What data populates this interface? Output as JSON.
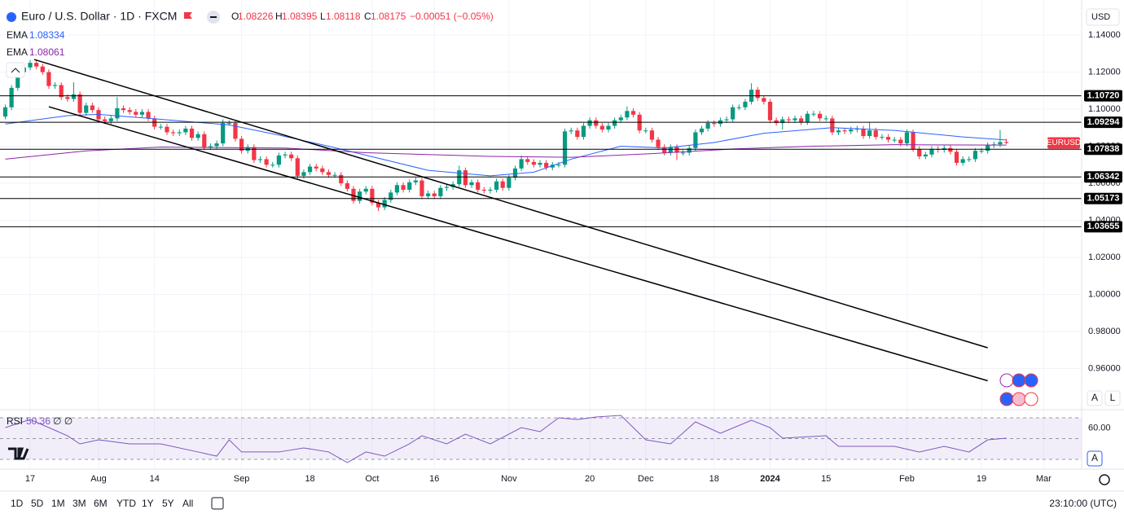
{
  "header": {
    "symbol": "Euro / U.S. Dollar · 1D · FXCM",
    "ohlc_labels": [
      "O",
      "H",
      "L",
      "C"
    ],
    "change": "−0.00051 (−0.05%)",
    "currency": "USD"
  },
  "toolbar": {
    "ranges": [
      "1D",
      "5D",
      "1M",
      "3M",
      "6M",
      "YTD",
      "1Y",
      "5Y",
      "All"
    ],
    "time": "23:10:00 (UTC)",
    "scale_buttons": [
      "A",
      "L"
    ]
  },
  "chart_data": [
    {
      "type": "candlestick",
      "symbol_tag": "EURUSD",
      "up_color": "#089981",
      "down_color": "#f23645",
      "grid": true,
      "categories": [
        null,
        null,
        null,
        null,
        "17",
        null,
        null,
        null,
        null,
        null,
        null,
        null,
        null,
        null,
        null,
        "Aug",
        null,
        null,
        null,
        null,
        null,
        null,
        null,
        null,
        "14",
        null,
        null,
        null,
        null,
        null,
        null,
        null,
        null,
        null,
        null,
        null,
        null,
        null,
        "Sep",
        null,
        null,
        null,
        null,
        null,
        null,
        null,
        null,
        null,
        null,
        "18",
        null,
        null,
        null,
        null,
        null,
        null,
        null,
        null,
        null,
        "Oct",
        null,
        null,
        null,
        null,
        null,
        null,
        null,
        null,
        null,
        "16",
        null,
        null,
        null,
        null,
        null,
        null,
        null,
        null,
        null,
        null,
        null,
        "Nov",
        null,
        null,
        null,
        null,
        null,
        null,
        null,
        null,
        null,
        null,
        null,
        null,
        "20",
        null,
        null,
        null,
        null,
        null,
        null,
        null,
        null,
        "Dec",
        null,
        null,
        null,
        null,
        null,
        null,
        null,
        null,
        null,
        null,
        "18",
        null,
        null,
        null,
        null,
        null,
        null,
        null,
        null,
        "2024",
        null,
        null,
        null,
        null,
        null,
        null,
        null,
        null,
        "15",
        null,
        null,
        null,
        null,
        null,
        null,
        null,
        null,
        null,
        null,
        null,
        null,
        "Feb",
        null,
        null,
        null,
        null,
        null,
        null,
        null,
        null,
        null,
        null,
        null,
        "19",
        null,
        null,
        null,
        null,
        null,
        null,
        null,
        null,
        null,
        "Mar"
      ],
      "open": [
        1.096,
        1.101,
        1.1115,
        1.12,
        1.1225,
        1.125,
        1.123,
        1.12,
        1.1125,
        1.113,
        1.1065,
        1.1055,
        1.108,
        1.098,
        1.102,
        1.0995,
        1.0945,
        1.0935,
        1.095,
        1.1005,
        1.0995,
        1.0985,
        1.097,
        1.0985,
        1.095,
        1.0905,
        1.0905,
        1.0875,
        1.087,
        1.0875,
        1.0895,
        1.0845,
        1.0865,
        1.0795,
        1.08,
        1.0815,
        1.0925,
        1.0925,
        1.084,
        1.0775,
        1.0795,
        1.0725,
        1.073,
        1.07,
        1.07,
        1.075,
        1.0755,
        1.0735,
        1.064,
        1.066,
        1.069,
        1.068,
        1.066,
        1.0645,
        1.0645,
        1.06,
        1.057,
        1.0505,
        1.0555,
        1.057,
        1.0495,
        1.047,
        1.051,
        1.055,
        1.059,
        1.0565,
        1.0605,
        1.0615,
        1.053,
        1.0545,
        1.053,
        1.0575,
        1.058,
        1.0595,
        1.067,
        1.059,
        1.0605,
        1.0565,
        1.056,
        1.0565,
        1.061,
        1.0575,
        1.063,
        1.068,
        1.073,
        1.0715,
        1.07,
        1.071,
        1.0685,
        1.07,
        1.07,
        1.088,
        1.0885,
        1.085,
        1.091,
        1.094,
        1.091,
        1.089,
        1.091,
        1.094,
        1.0955,
        1.099,
        1.097,
        1.0885,
        1.0885,
        1.0835,
        1.0795,
        1.0765,
        1.0795,
        1.0765,
        1.0765,
        1.079,
        1.0875,
        1.0895,
        1.0925,
        1.092,
        1.094,
        1.0945,
        1.101,
        1.101,
        1.104,
        1.1105,
        1.106,
        1.104,
        1.094,
        1.0925,
        1.0945,
        1.094,
        1.095,
        1.093,
        1.0975,
        1.0975,
        1.095,
        1.095,
        1.0875,
        1.0885,
        1.088,
        1.089,
        1.0895,
        1.0855,
        1.0885,
        1.085,
        1.085,
        1.0835,
        1.0835,
        1.0815,
        1.0875,
        1.0785,
        1.0745,
        1.0755,
        1.0785,
        1.078,
        1.079,
        1.077,
        1.071,
        1.073,
        1.073,
        1.0775,
        1.0775,
        1.0805,
        1.081,
        1.08226,
        null,
        null,
        null,
        null,
        null,
        null
      ],
      "high": [
        1.1025,
        1.113,
        1.1215,
        1.124,
        1.1265,
        1.1265,
        1.1245,
        1.1215,
        1.1145,
        1.1145,
        1.108,
        1.1145,
        1.1095,
        1.1035,
        1.1035,
        1.101,
        1.096,
        1.0965,
        1.1065,
        1.102,
        1.101,
        1.1,
        1.1,
        1.1,
        1.0965,
        1.092,
        1.092,
        1.089,
        1.089,
        1.091,
        1.091,
        1.088,
        1.088,
        1.0815,
        1.083,
        1.0945,
        1.094,
        1.094,
        1.0855,
        1.081,
        1.081,
        1.0745,
        1.0745,
        1.0715,
        1.0765,
        1.077,
        1.077,
        1.075,
        1.0675,
        1.0705,
        1.0705,
        1.0695,
        1.0675,
        1.066,
        1.066,
        1.0615,
        1.0585,
        1.057,
        1.0585,
        1.0585,
        1.051,
        1.0525,
        1.0565,
        1.0605,
        1.0605,
        1.062,
        1.063,
        1.063,
        1.056,
        1.056,
        1.059,
        1.0595,
        1.061,
        1.0695,
        1.0685,
        1.062,
        1.062,
        1.058,
        1.058,
        1.0625,
        1.0625,
        1.0645,
        1.0695,
        1.075,
        1.0745,
        1.073,
        1.0725,
        1.0725,
        1.0715,
        1.0715,
        1.0895,
        1.09,
        1.09,
        1.0925,
        1.0955,
        1.0955,
        1.0925,
        1.0925,
        1.0955,
        1.097,
        1.1015,
        1.1005,
        1.0985,
        1.09,
        1.09,
        1.085,
        1.081,
        1.081,
        1.081,
        1.078,
        1.0805,
        1.089,
        1.091,
        1.094,
        1.094,
        1.0955,
        1.096,
        1.1025,
        1.1025,
        1.1055,
        1.114,
        1.112,
        1.1075,
        1.1055,
        1.0955,
        1.096,
        1.096,
        1.0965,
        1.0965,
        1.099,
        1.099,
        1.099,
        1.0965,
        1.0965,
        1.09,
        1.09,
        1.0905,
        1.091,
        1.091,
        1.093,
        1.09,
        1.0865,
        1.0865,
        1.085,
        1.085,
        1.089,
        1.089,
        1.08,
        1.077,
        1.08,
        1.08,
        1.0805,
        1.0805,
        1.0785,
        1.0745,
        1.0745,
        1.079,
        1.079,
        1.082,
        1.0825,
        1.0888,
        1.08395,
        null,
        null,
        null,
        null,
        null,
        null
      ],
      "low": [
        1.0945,
        1.0995,
        1.11,
        1.1185,
        1.121,
        1.1215,
        1.1185,
        1.111,
        1.111,
        1.105,
        1.104,
        1.104,
        1.0965,
        1.0965,
        1.098,
        1.093,
        1.092,
        1.092,
        1.0935,
        1.098,
        1.097,
        1.0955,
        1.0955,
        1.0935,
        1.089,
        1.089,
        1.086,
        1.0855,
        1.0855,
        1.086,
        1.083,
        1.083,
        1.078,
        1.078,
        1.0785,
        1.08,
        1.091,
        1.0825,
        1.076,
        1.076,
        1.071,
        1.071,
        1.0685,
        1.0685,
        1.0685,
        1.0735,
        1.072,
        1.0625,
        1.0625,
        1.0645,
        1.0665,
        1.0645,
        1.063,
        1.063,
        1.0585,
        1.0555,
        1.049,
        1.049,
        1.054,
        1.048,
        1.045,
        1.0455,
        1.0495,
        1.0535,
        1.055,
        1.055,
        1.059,
        1.0515,
        1.0515,
        1.0515,
        1.0515,
        1.056,
        1.0565,
        1.058,
        1.0575,
        1.0575,
        1.055,
        1.0545,
        1.0545,
        1.055,
        1.056,
        1.056,
        1.0615,
        1.0665,
        1.07,
        1.0685,
        1.0685,
        1.067,
        1.067,
        1.0685,
        1.0685,
        1.0865,
        1.0835,
        1.0835,
        1.0895,
        1.0895,
        1.0875,
        1.0875,
        1.0895,
        1.0925,
        1.094,
        1.0955,
        1.087,
        1.087,
        1.082,
        1.078,
        1.075,
        1.075,
        1.0725,
        1.075,
        1.075,
        1.0775,
        1.086,
        1.088,
        1.0905,
        1.0905,
        1.0925,
        1.093,
        1.0995,
        1.0995,
        1.1025,
        1.1045,
        1.1025,
        1.0925,
        1.091,
        1.089,
        1.0925,
        1.0925,
        1.0915,
        1.0915,
        1.096,
        1.0935,
        1.0935,
        1.086,
        1.086,
        1.0865,
        1.0865,
        1.0875,
        1.084,
        1.084,
        1.0835,
        1.0835,
        1.082,
        1.082,
        1.08,
        1.08,
        1.077,
        1.073,
        1.073,
        1.074,
        1.0765,
        1.0765,
        1.0755,
        1.0695,
        1.0695,
        1.0715,
        1.0715,
        1.076,
        1.076,
        1.079,
        1.0795,
        1.08118,
        null,
        null,
        null,
        null,
        null,
        null
      ],
      "close": [
        1.101,
        1.1115,
        1.12,
        1.1225,
        1.125,
        1.123,
        1.12,
        1.1125,
        1.113,
        1.1065,
        1.1055,
        1.108,
        1.098,
        1.102,
        1.0995,
        1.0945,
        1.0935,
        1.095,
        1.1005,
        1.0995,
        1.0985,
        1.097,
        1.0985,
        1.095,
        1.0905,
        1.0905,
        1.0875,
        1.087,
        1.0875,
        1.0895,
        1.0845,
        1.0865,
        1.0795,
        1.08,
        1.0815,
        1.0925,
        1.0925,
        1.084,
        1.0775,
        1.0795,
        1.0725,
        1.073,
        1.07,
        1.07,
        1.075,
        1.0755,
        1.0735,
        1.064,
        1.066,
        1.069,
        1.068,
        1.066,
        1.0645,
        1.0645,
        1.06,
        1.057,
        1.0505,
        1.0555,
        1.057,
        1.0495,
        1.047,
        1.051,
        1.055,
        1.059,
        1.0565,
        1.0605,
        1.0615,
        1.053,
        1.0545,
        1.053,
        1.0575,
        1.058,
        1.0595,
        1.067,
        1.059,
        1.0605,
        1.0565,
        1.056,
        1.0565,
        1.061,
        1.0575,
        1.063,
        1.068,
        1.073,
        1.0715,
        1.07,
        1.071,
        1.0685,
        1.07,
        1.07,
        1.088,
        1.0885,
        1.085,
        1.091,
        1.094,
        1.091,
        1.089,
        1.091,
        1.094,
        1.0955,
        1.099,
        1.097,
        1.0885,
        1.0885,
        1.0835,
        1.0795,
        1.0765,
        1.0795,
        1.0765,
        1.0765,
        1.079,
        1.0875,
        1.0895,
        1.0925,
        1.092,
        1.094,
        1.0945,
        1.101,
        1.101,
        1.104,
        1.1105,
        1.106,
        1.104,
        1.094,
        1.0925,
        1.0945,
        1.094,
        1.095,
        1.093,
        1.0975,
        1.0975,
        1.095,
        1.095,
        1.0875,
        1.0885,
        1.088,
        1.089,
        1.0895,
        1.0855,
        1.0885,
        1.085,
        1.085,
        1.0835,
        1.0835,
        1.0815,
        1.0875,
        1.0785,
        1.0745,
        1.0755,
        1.0785,
        1.078,
        1.079,
        1.077,
        1.071,
        1.073,
        1.073,
        1.0775,
        1.0775,
        1.0805,
        1.081,
        1.08226,
        1.08175,
        null,
        null,
        null,
        null,
        null,
        null
      ],
      "series": [
        {
          "name": "EMA",
          "color": "#2962ff",
          "x": [
            0,
            10,
            15,
            25,
            36,
            44,
            52,
            60,
            68,
            78,
            85,
            91,
            99,
            106,
            114,
            122,
            133,
            143,
            154,
            161
          ],
          "values": [
            1.092,
            1.0965,
            1.0972,
            1.0945,
            1.0915,
            1.086,
            1.08,
            1.0735,
            1.067,
            1.064,
            1.066,
            1.073,
            1.08,
            1.079,
            1.082,
            1.087,
            1.09,
            1.0885,
            1.085,
            1.08334
          ]
        },
        {
          "name": "EMA",
          "color": "#8e24aa",
          "x": [
            0,
            13,
            25,
            45,
            58,
            78,
            91,
            104,
            117,
            130,
            143,
            161
          ],
          "values": [
            1.073,
            1.0775,
            1.0795,
            1.079,
            1.0765,
            1.0745,
            1.074,
            1.076,
            1.0785,
            1.08,
            1.0808,
            1.08061
          ]
        }
      ],
      "levels": [
        {
          "value": 1.1072,
          "label": "1.10720"
        },
        {
          "value": 1.09294,
          "label": "1.09294"
        },
        {
          "value": 1.07838,
          "label": "1.07838"
        },
        {
          "value": 1.06342,
          "label": "1.06342"
        },
        {
          "value": 1.05173,
          "label": "1.05173"
        },
        {
          "value": 1.03655,
          "label": "1.03655"
        }
      ],
      "trendlines": [
        {
          "x": [
            4.65,
            158
          ],
          "y": [
            1.1268,
            0.9712
          ]
        },
        {
          "x": [
            7,
            158
          ],
          "y": [
            1.1013,
            0.9534
          ]
        }
      ],
      "ylim": [
        0.9391,
        1.1554
      ],
      "yticks": [
        {
          "value": 1.14,
          "label": "1.14000"
        },
        {
          "value": 1.12,
          "label": "1.12000"
        },
        {
          "value": 1.1,
          "label": "1.10000"
        },
        {
          "value": 1.08,
          "label": "1.08000"
        },
        {
          "value": 1.06,
          "label": "1.06000"
        },
        {
          "value": 1.04,
          "label": "1.04000"
        },
        {
          "value": 1.02,
          "label": "1.02000"
        },
        {
          "value": 1.0,
          "label": "1.00000"
        },
        {
          "value": 0.98,
          "label": "0.98000"
        },
        {
          "value": 0.96,
          "label": "0.96000"
        }
      ]
    },
    {
      "type": "line",
      "title": "RSI",
      "status": "∅ ∅",
      "color": "#7e57c2",
      "x": [
        0,
        4,
        7,
        10,
        12,
        15,
        20,
        25,
        31,
        34,
        36,
        38,
        44,
        48,
        52,
        55,
        58,
        61,
        65,
        67,
        71,
        74,
        78,
        83,
        86,
        89,
        92,
        95,
        99,
        103,
        107,
        111,
        115,
        120,
        123,
        125,
        132,
        134,
        139,
        143,
        147,
        151,
        155,
        158,
        161
      ],
      "values": [
        60.6,
        68.4,
        60.6,
        52.7,
        44.9,
        48.8,
        44.9,
        44.9,
        37.1,
        33.1,
        48.8,
        37.1,
        37.1,
        41.0,
        37.1,
        26.9,
        37.1,
        33.1,
        44.9,
        52.7,
        44.9,
        54.3,
        44.9,
        60.6,
        56.7,
        70.0,
        68.4,
        70.8,
        72.4,
        48.8,
        44.9,
        66.1,
        55.1,
        67.6,
        60.6,
        50.4,
        52.7,
        42.5,
        42.5,
        42.5,
        37.1,
        42.5,
        37.1,
        48.8,
        50.36
      ],
      "bands": [
        70,
        50,
        30
      ],
      "ylim": [
        23.7,
        76.3
      ],
      "yticks": [
        {
          "value": 60,
          "label": "60.00"
        }
      ]
    }
  ]
}
